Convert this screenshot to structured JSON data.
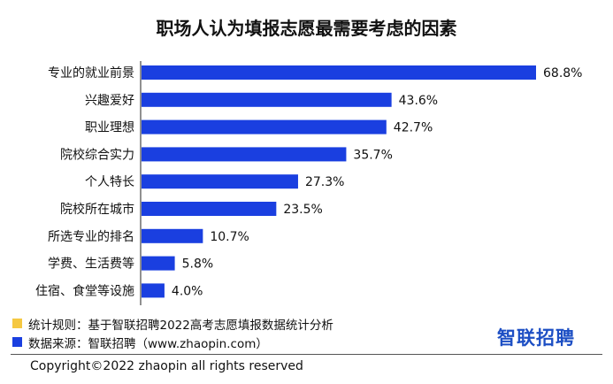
{
  "chart_data": {
    "type": "bar",
    "orientation": "horizontal",
    "title": "职场人认为填报志愿最需要考虑的因素",
    "categories": [
      "专业的就业前景",
      "兴趣爱好",
      "职业理想",
      "院校综合实力",
      "个人特长",
      "院校所在城市",
      "所选专业的排名",
      "学费、生活费等",
      "住宿、食堂等设施"
    ],
    "series": [
      {
        "values": [
          68.8,
          43.6,
          42.7,
          35.7,
          27.3,
          23.5,
          10.7,
          5.8,
          4.0
        ]
      }
    ],
    "value_labels": [
      "68.8%",
      "43.6%",
      "42.7%",
      "35.7%",
      "27.3%",
      "23.5%",
      "10.7%",
      "5.8%",
      "4.0%"
    ],
    "xlim": [
      0,
      68.8
    ],
    "grid": false,
    "bar_color": "#1a3fe0"
  },
  "notes": {
    "method": "统计规则：基于智联招聘2022高考志愿填报数据统计分析",
    "source": "数据来源：智联招聘（www.zhaopin.com）",
    "method_color": "#f5c842",
    "source_color": "#1a3fe0"
  },
  "logo_text": "智联招聘",
  "copyright": "Copyright©2022 zhaopin all rights reserved"
}
